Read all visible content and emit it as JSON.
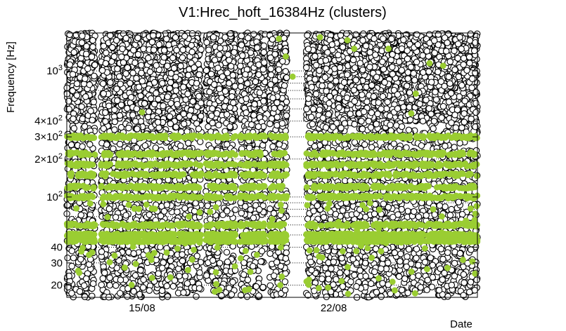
{
  "chart_data": {
    "type": "scatter",
    "title": "V1:Hrec_hoft_16384Hz (clusters)",
    "xlabel": "Date",
    "ylabel": "Frequency [Hz]",
    "yscale": "log",
    "ylim": [
      16,
      2000
    ],
    "xlim": [
      "2011-08-12T06:00",
      "2011-08-27T06:00"
    ],
    "grid": "horizontal dotted (minor decades)",
    "ytick_labels": [
      {
        "value": 20,
        "label": "20"
      },
      {
        "value": 30,
        "label": "30"
      },
      {
        "value": 40,
        "label": "40"
      },
      {
        "value": 100,
        "label": "10^2"
      },
      {
        "value": 200,
        "label": "2×10^2"
      },
      {
        "value": 300,
        "label": "3×10^2"
      },
      {
        "value": 400,
        "label": "4×10^2"
      },
      {
        "value": 1000,
        "label": "10^3"
      }
    ],
    "xtick_labels": [
      {
        "value": "2011-08-15",
        "label": "15/08"
      },
      {
        "value": "2011-08-22",
        "label": "22/08"
      }
    ],
    "colors": {
      "cluster": "#000000",
      "highlight": "#9acd32"
    },
    "data_coverage": [
      [
        "2011-08-12T06:00",
        "2011-08-13T07:00"
      ],
      [
        "2011-08-13T12:00",
        "2011-08-17T04:00"
      ],
      [
        "2011-08-17T08:00",
        "2011-08-18T10:00"
      ],
      [
        "2011-08-18T14:00",
        "2011-08-19T12:00"
      ],
      [
        "2011-08-19T16:00",
        "2011-08-20T07:00"
      ],
      [
        "2011-08-21T00:00",
        "2011-08-27T06:00"
      ]
    ],
    "series": [
      {
        "style": "black open circles",
        "dense_above_hz": 400,
        "dense_bands_hz": [
          [
            400,
            2000
          ]
        ],
        "scatter_bands_hz": [
          [
            16,
            400
          ]
        ]
      },
      {
        "style": "green filled circles",
        "frequency_bands_hz": [
          45,
          50,
          60,
          100,
          120,
          150,
          180,
          220,
          300
        ],
        "sparse_points": [
          {
            "x": "2011-08-15T00:00",
            "y": 470
          },
          {
            "x": "2011-08-20T00:00",
            "y": 1800
          },
          {
            "x": "2011-08-20T06:00",
            "y": 1300
          },
          {
            "x": "2011-08-20T12:00",
            "y": 900
          },
          {
            "x": "2011-08-21T12:00",
            "y": 1850
          },
          {
            "x": "2011-08-22T12:00",
            "y": 1750
          },
          {
            "x": "2011-08-22T18:00",
            "y": 1500
          },
          {
            "x": "2011-08-24T00:00",
            "y": 1500
          },
          {
            "x": "2011-08-25T12:00",
            "y": 1150
          },
          {
            "x": "2011-08-25T00:00",
            "y": 660
          },
          {
            "x": "2011-08-24T20:00",
            "y": 460
          },
          {
            "x": "2011-08-26T00:00",
            "y": 1100
          }
        ]
      }
    ]
  }
}
